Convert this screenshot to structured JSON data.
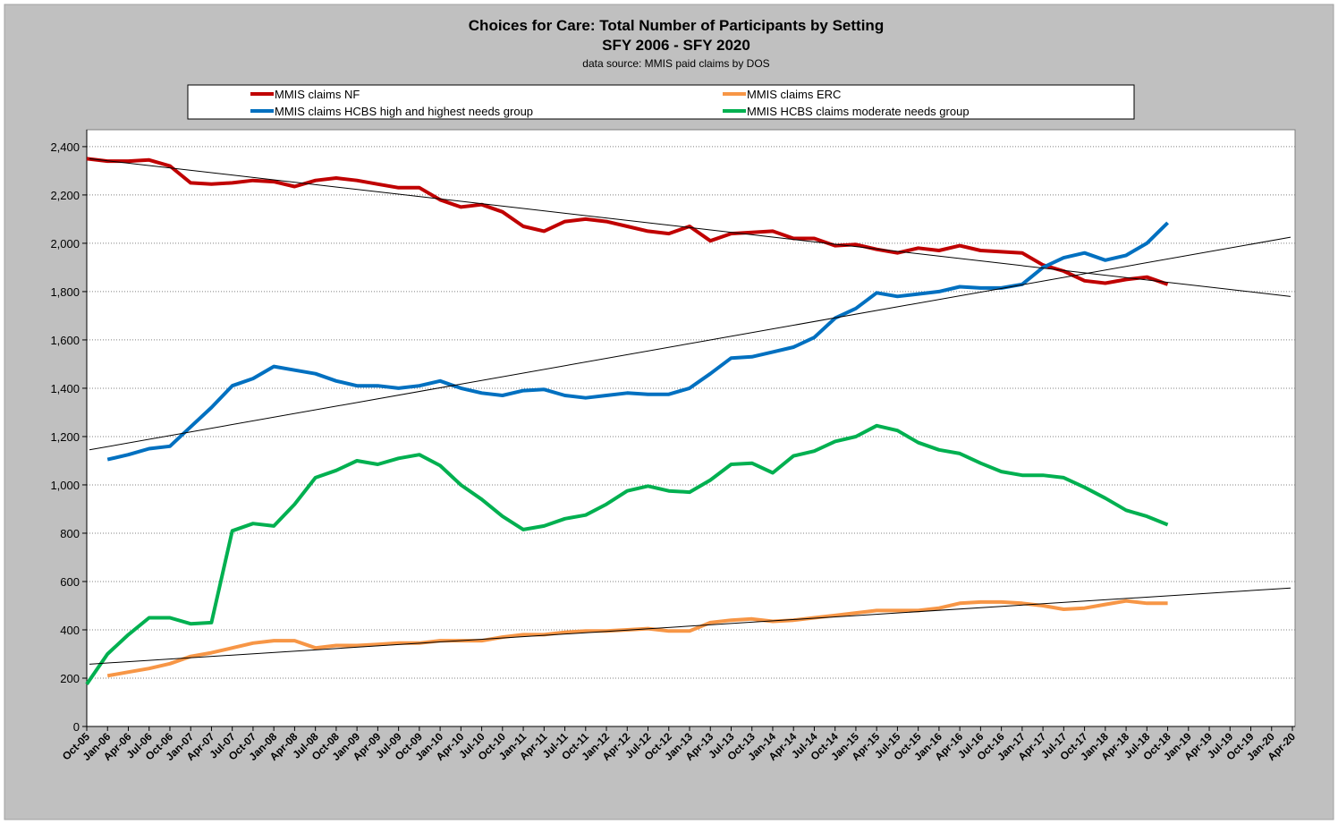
{
  "chart_data": {
    "type": "line",
    "title": "Choices for Care:  Total Number of Participants by Setting",
    "subtitle": "SFY 2006 - SFY 2020",
    "source": "data source: MMIS paid claims by DOS",
    "categories": [
      "Oct-05",
      "Jan-06",
      "Apr-06",
      "Jul-06",
      "Oct-06",
      "Jan-07",
      "Apr-07",
      "Jul-07",
      "Oct-07",
      "Jan-08",
      "Apr-08",
      "Jul-08",
      "Oct-08",
      "Jan-09",
      "Apr-09",
      "Jul-09",
      "Oct-09",
      "Jan-10",
      "Apr-10",
      "Jul-10",
      "Oct-10",
      "Jan-11",
      "Apr-11",
      "Jul-11",
      "Oct-11",
      "Jan-12",
      "Apr-12",
      "Jul-12",
      "Oct-12",
      "Jan-13",
      "Apr-13",
      "Jul-13",
      "Oct-13",
      "Jan-14",
      "Apr-14",
      "Jul-14",
      "Oct-14",
      "Jan-15",
      "Apr-15",
      "Jul-15",
      "Oct-15",
      "Jan-16",
      "Apr-16",
      "Jul-16",
      "Oct-16",
      "Jan-17",
      "Apr-17",
      "Jul-17",
      "Oct-17",
      "Jan-18",
      "Apr-18",
      "Jul-18",
      "Oct-18",
      "Jan-19",
      "Apr-19",
      "Jul-19",
      "Oct-19",
      "Jan-20",
      "Apr-20"
    ],
    "series": [
      {
        "name": "MMIS claims NF",
        "color": "#c00000",
        "values": [
          2350,
          2340,
          2340,
          2345,
          2320,
          2250,
          2245,
          2250,
          2260,
          2255,
          2235,
          2260,
          2270,
          2260,
          2245,
          2230,
          2230,
          2180,
          2150,
          2160,
          2130,
          2070,
          2050,
          2090,
          2100,
          2090,
          2070,
          2050,
          2040,
          2070,
          2010,
          2040,
          2045,
          2050,
          2020,
          2020,
          1990,
          1995,
          1975,
          1960,
          1980,
          1970,
          1990,
          1970,
          1965,
          1960,
          1910,
          1885,
          1845,
          1835,
          1850,
          1860,
          1830,
          null,
          null,
          null,
          null,
          null,
          null
        ]
      },
      {
        "name": "MMIS claims ERC",
        "color": "#f79646",
        "values": [
          null,
          210,
          225,
          240,
          260,
          290,
          305,
          325,
          345,
          355,
          355,
          325,
          335,
          335,
          340,
          345,
          345,
          355,
          355,
          355,
          370,
          380,
          380,
          390,
          395,
          395,
          400,
          405,
          395,
          395,
          430,
          440,
          445,
          435,
          440,
          450,
          460,
          470,
          480,
          480,
          480,
          490,
          510,
          515,
          515,
          510,
          500,
          485,
          490,
          505,
          520,
          510,
          510,
          null,
          null,
          null,
          null,
          null,
          null
        ]
      },
      {
        "name": "MMIS claims HCBS high and highest needs group",
        "color": "#0070c0",
        "values": [
          null,
          1105,
          1125,
          1150,
          1160,
          1240,
          1320,
          1410,
          1440,
          1490,
          1475,
          1460,
          1430,
          1410,
          1410,
          1400,
          1410,
          1430,
          1400,
          1380,
          1370,
          1390,
          1395,
          1370,
          1360,
          1370,
          1380,
          1375,
          1375,
          1400,
          1460,
          1525,
          1530,
          1550,
          1570,
          1610,
          1690,
          1730,
          1795,
          1780,
          1790,
          1800,
          1820,
          1815,
          1815,
          1830,
          1900,
          1940,
          1960,
          1930,
          1950,
          2000,
          2085,
          null,
          null,
          null,
          null,
          null,
          null
        ]
      },
      {
        "name": "MMIS HCBS claims moderate needs group",
        "color": "#00b050",
        "values": [
          175,
          300,
          380,
          450,
          450,
          425,
          430,
          810,
          840,
          830,
          920,
          1030,
          1060,
          1100,
          1085,
          1110,
          1125,
          1080,
          1000,
          940,
          870,
          815,
          830,
          860,
          875,
          920,
          975,
          995,
          975,
          970,
          1020,
          1085,
          1090,
          1050,
          1120,
          1140,
          1180,
          1200,
          1245,
          1225,
          1175,
          1145,
          1130,
          1090,
          1055,
          1040,
          1040,
          1030,
          990,
          945,
          895,
          870,
          835,
          null,
          null,
          null,
          null,
          null,
          null
        ]
      }
    ],
    "trendlines": [
      {
        "color": "#000000",
        "values": [
          2350,
          1780
        ]
      },
      {
        "color": "#000000",
        "values": [
          1145,
          2025
        ]
      },
      {
        "color": "#000000",
        "values": [
          258,
          573
        ]
      }
    ],
    "ylim": [
      0,
      2470
    ],
    "yticks": [
      0,
      200,
      400,
      600,
      800,
      {
        "value": 1000,
        "label": "1,000"
      },
      {
        "value": 1200,
        "label": "1,200"
      },
      {
        "value": 1400,
        "label": "1,400"
      },
      {
        "value": 1600,
        "label": "1,600"
      },
      {
        "value": 1800,
        "label": "1,800"
      },
      {
        "value": 2000,
        "label": "2,000"
      },
      {
        "value": 2200,
        "label": "2,200"
      },
      {
        "value": 2400,
        "label": "2,400"
      }
    ],
    "grid": true
  }
}
